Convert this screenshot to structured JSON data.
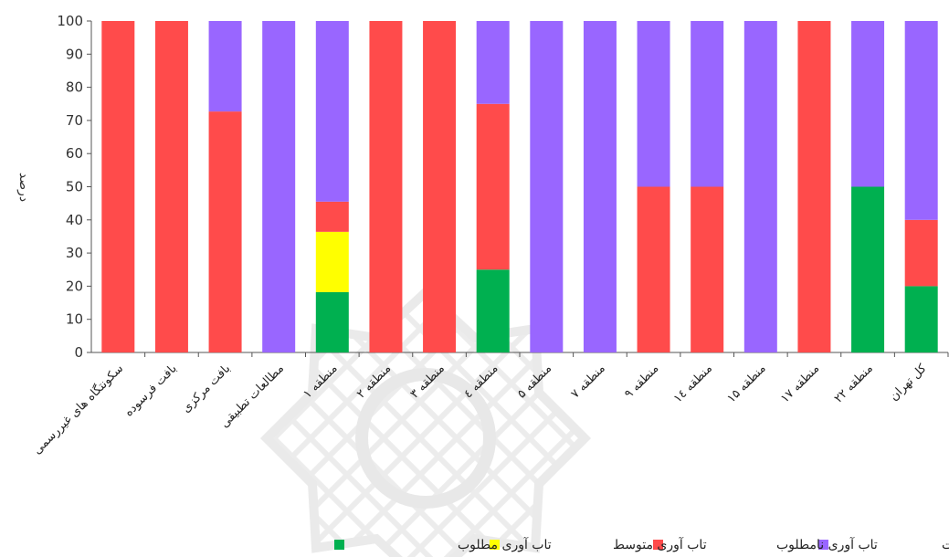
{
  "chart_data": {
    "type": "bar",
    "stacked": true,
    "categories": [
      "سکونتگاه های غیررسمی",
      "بافت فرسوده",
      "بافت مرکزی",
      "مطالعات تطبیقی",
      "منطقه ۱",
      "منطقه ۲",
      "منطقه ۳",
      "منطقه ٤",
      "منطقه ۵",
      "منطقه ۷",
      "منطقه ۹",
      "منطقه ١٤",
      "منطقه ۱۵",
      "منطقه ۱۷",
      "منطقه ۲۲",
      "کل تهران"
    ],
    "series": [
      {
        "name": "تاب آوری مطلوب",
        "color": "#00b050",
        "values": [
          0,
          0,
          0,
          0,
          18.2,
          0,
          0,
          25,
          0,
          0,
          0,
          0,
          0,
          0,
          50,
          20
        ]
      },
      {
        "name": "تاب آوری متوسط",
        "color": "#ffff00",
        "values": [
          0,
          0,
          0,
          0,
          18.2,
          0,
          0,
          0,
          0,
          0,
          0,
          0,
          0,
          0,
          0,
          0
        ]
      },
      {
        "name": "تاب آوری نامطلوب",
        "color": "#ff4b4b",
        "values": [
          100,
          100,
          72.7,
          0,
          9.1,
          100,
          100,
          50,
          0,
          0,
          50,
          50,
          0,
          100,
          0,
          20
        ]
      },
      {
        "name": "تاب آوری متفاوت",
        "color": "#9966ff",
        "values": [
          0,
          0,
          27.3,
          100,
          54.5,
          0,
          0,
          25,
          100,
          100,
          50,
          50,
          100,
          0,
          50,
          60
        ]
      }
    ],
    "ylabel": "درصد",
    "xlabel": "",
    "ylim": [
      0,
      100
    ],
    "yticks": [
      0,
      10,
      20,
      30,
      40,
      50,
      60,
      70,
      80,
      90,
      100
    ],
    "legend_position": "bottom",
    "grid": false
  }
}
